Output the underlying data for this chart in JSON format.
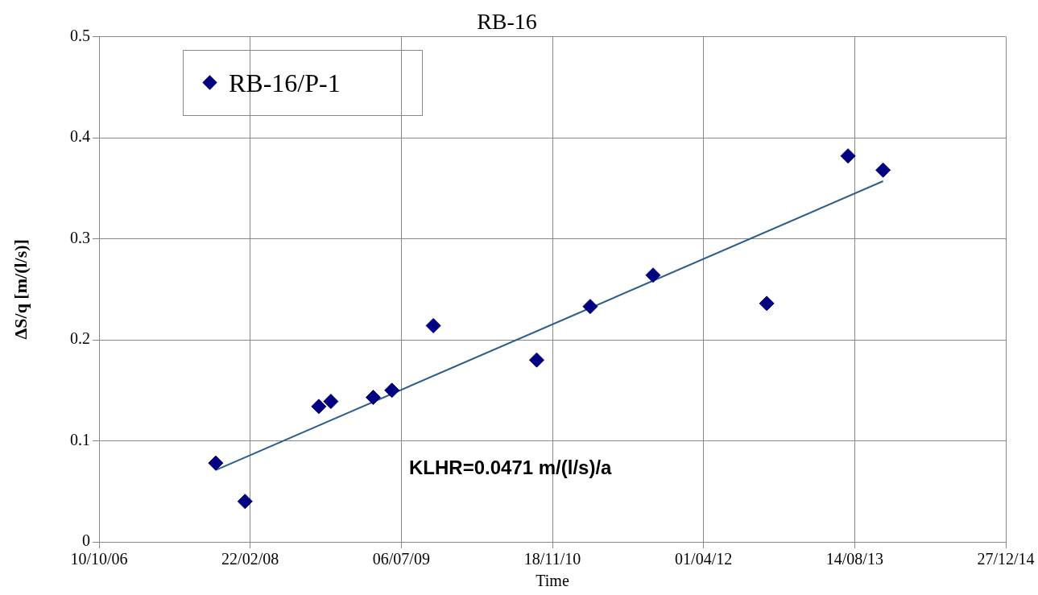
{
  "chart_data": {
    "type": "scatter",
    "title": "RB-16",
    "xlabel": "Time",
    "ylabel": "ΔS/q [m/(l/s)]",
    "x": [
      "2007-10-31",
      "2008-02-05",
      "2008-10-06",
      "2008-11-15",
      "2009-04-04",
      "2009-06-05",
      "2009-10-20",
      "2010-09-27",
      "2011-03-23",
      "2011-10-17",
      "2012-10-27",
      "2013-07-23",
      "2013-11-16"
    ],
    "series": [
      {
        "name": "RB-16/P-1",
        "color": "#000080",
        "values": [
          0.078,
          0.04,
          0.134,
          0.139,
          0.143,
          0.15,
          0.214,
          0.18,
          0.233,
          0.264,
          0.236,
          0.382,
          0.368
        ],
        "marker": "diamond"
      },
      {
        "type": "line",
        "color": "#2e5d8a",
        "x": [
          "2007-10-31",
          "2013-11-16"
        ],
        "values": [
          0.071,
          0.357
        ],
        "marker": "none"
      }
    ],
    "xlim": [
      "2006-10-10",
      "2014-12-27"
    ],
    "xticks": [
      {
        "value": "2006-10-10",
        "label": "10/10/06"
      },
      {
        "value": "2008-02-22",
        "label": "22/02/08"
      },
      {
        "value": "2009-07-06",
        "label": "06/07/09"
      },
      {
        "value": "2010-11-18",
        "label": "18/11/10"
      },
      {
        "value": "2012-04-01",
        "label": "01/04/12"
      },
      {
        "value": "2013-08-14",
        "label": "14/08/13"
      },
      {
        "value": "2014-12-27",
        "label": "27/12/14"
      }
    ],
    "ylim": [
      0,
      0.5
    ],
    "yticks": [
      0,
      0.1,
      0.2,
      0.3,
      0.4,
      0.5
    ],
    "grid": true,
    "legend": "top left",
    "annotations": [
      "KLHR=0.0471 m/(l/s)/a"
    ]
  }
}
